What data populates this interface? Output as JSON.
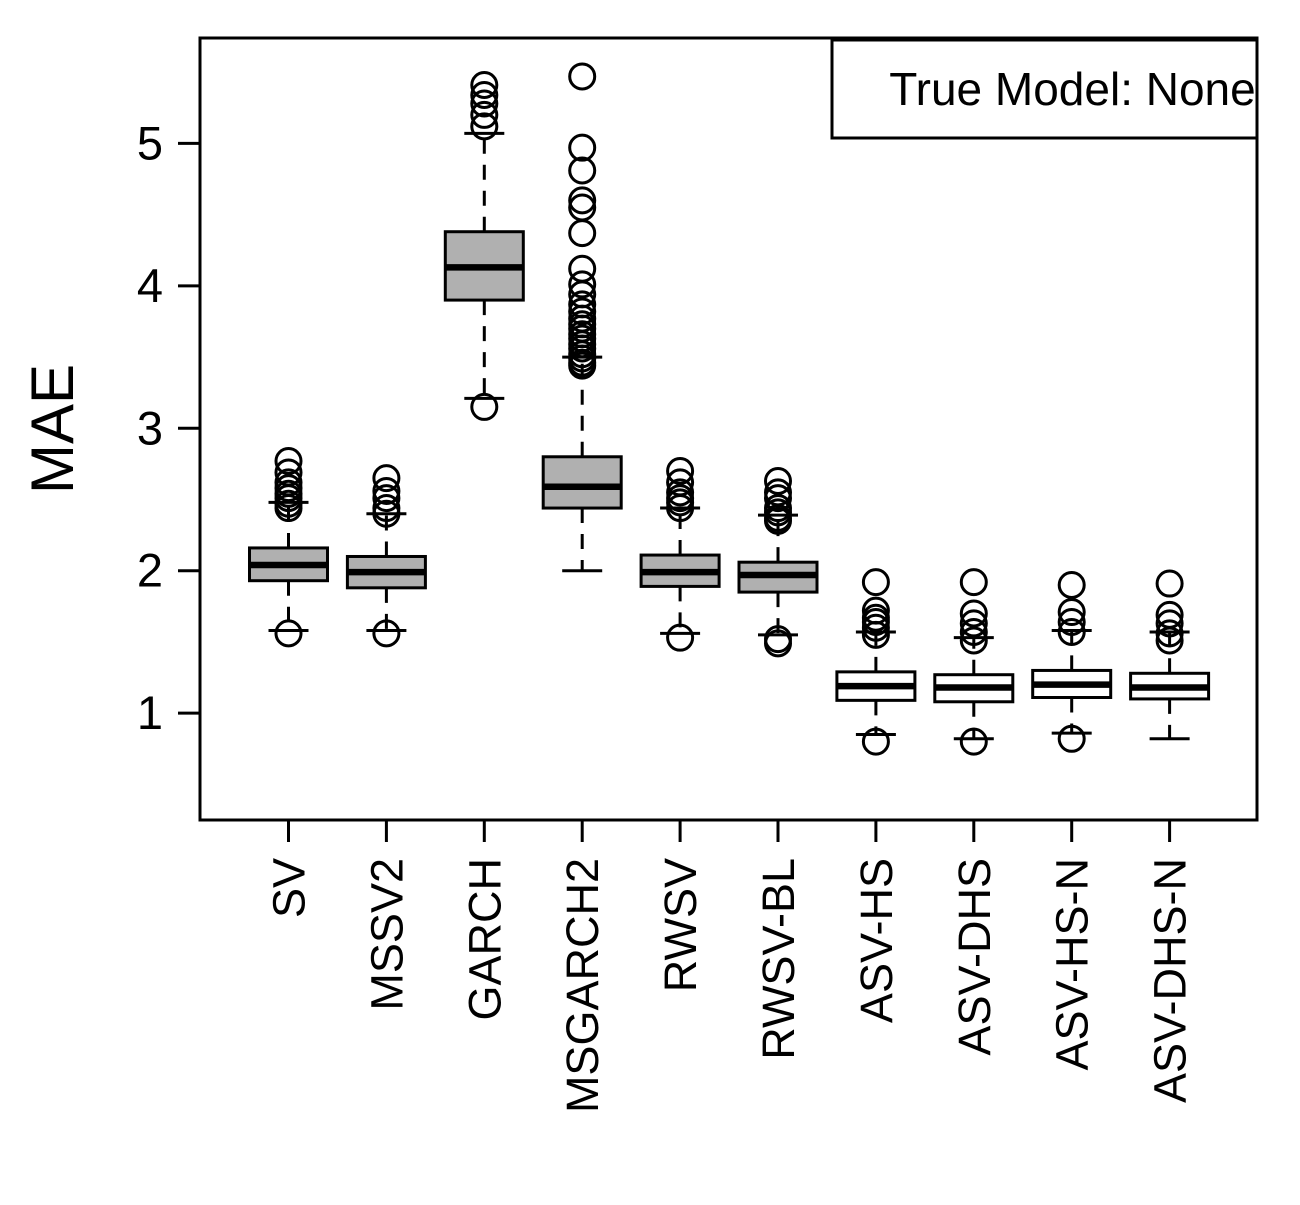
{
  "chart_data": {
    "type": "boxplot",
    "title": "",
    "xlabel": "",
    "ylabel": "MAE",
    "legend": {
      "label": "True Model: None",
      "position": "topright"
    },
    "y_ticks": [
      1,
      2,
      3,
      4,
      5
    ],
    "ylim": [
      0.25,
      5.74
    ],
    "grid": false,
    "colors": {
      "gray_fill": "#b0b0b0",
      "white_fill": "#ffffff",
      "stroke": "#000000",
      "background": "#ffffff"
    },
    "categories": [
      "SV",
      "MSSV2",
      "GARCH",
      "MSGARCH2",
      "RWSV",
      "RWSV-BL",
      "ASV-HS",
      "ASV-DHS",
      "ASV-HS-N",
      "ASV-DHS-N"
    ],
    "series": [
      {
        "name": "SV",
        "fill": "gray",
        "whisker_low": 1.58,
        "q1": 1.93,
        "median": 2.04,
        "q3": 2.16,
        "whisker_high": 2.48,
        "outliers": [
          1.56,
          2.44,
          2.47,
          2.51,
          2.54,
          2.58,
          2.62,
          2.69,
          2.77
        ]
      },
      {
        "name": "MSSV2",
        "fill": "gray",
        "whisker_low": 1.58,
        "q1": 1.88,
        "median": 1.99,
        "q3": 2.1,
        "whisker_high": 2.4,
        "outliers": [
          1.56,
          2.4,
          2.44,
          2.51,
          2.56,
          2.65
        ]
      },
      {
        "name": "GARCH",
        "fill": "gray",
        "whisker_low": 3.21,
        "q1": 3.9,
        "median": 4.13,
        "q3": 4.38,
        "whisker_high": 5.07,
        "outliers": [
          3.15,
          5.12,
          5.2,
          5.28,
          5.34,
          5.41
        ]
      },
      {
        "name": "MSGARCH2",
        "fill": "gray",
        "whisker_low": 2.0,
        "q1": 2.44,
        "median": 2.59,
        "q3": 2.8,
        "whisker_high": 3.5,
        "outliers": [
          3.44,
          3.46,
          3.49,
          3.52,
          3.56,
          3.59,
          3.63,
          3.66,
          3.7,
          3.73,
          3.77,
          3.82,
          3.87,
          3.94,
          4.01,
          4.12,
          4.37,
          4.55,
          4.6,
          4.81,
          4.97,
          5.47
        ]
      },
      {
        "name": "RWSV",
        "fill": "gray",
        "whisker_low": 1.56,
        "q1": 1.89,
        "median": 1.99,
        "q3": 2.11,
        "whisker_high": 2.44,
        "outliers": [
          1.53,
          2.44,
          2.48,
          2.51,
          2.55,
          2.62,
          2.7
        ]
      },
      {
        "name": "RWSV-BL",
        "fill": "gray",
        "whisker_low": 1.55,
        "q1": 1.85,
        "median": 1.97,
        "q3": 2.06,
        "whisker_high": 2.39,
        "outliers": [
          1.49,
          1.52,
          2.35,
          2.37,
          2.41,
          2.44,
          2.51,
          2.55,
          2.63
        ]
      },
      {
        "name": "ASV-HS",
        "fill": "white",
        "whisker_low": 0.85,
        "q1": 1.09,
        "median": 1.19,
        "q3": 1.29,
        "whisker_high": 1.57,
        "outliers": [
          0.8,
          1.55,
          1.6,
          1.64,
          1.67,
          1.72,
          1.92
        ]
      },
      {
        "name": "ASV-DHS",
        "fill": "white",
        "whisker_low": 0.82,
        "q1": 1.08,
        "median": 1.18,
        "q3": 1.27,
        "whisker_high": 1.53,
        "outliers": [
          0.8,
          1.51,
          1.57,
          1.63,
          1.7,
          1.92
        ]
      },
      {
        "name": "ASV-HS-N",
        "fill": "white",
        "whisker_low": 0.86,
        "q1": 1.11,
        "median": 1.2,
        "q3": 1.3,
        "whisker_high": 1.58,
        "outliers": [
          0.82,
          1.57,
          1.64,
          1.71,
          1.9
        ]
      },
      {
        "name": "ASV-DHS-N",
        "fill": "white",
        "whisker_low": 0.82,
        "q1": 1.1,
        "median": 1.18,
        "q3": 1.28,
        "whisker_high": 1.57,
        "outliers": [
          1.51,
          1.56,
          1.63,
          1.69,
          1.91
        ]
      }
    ]
  }
}
